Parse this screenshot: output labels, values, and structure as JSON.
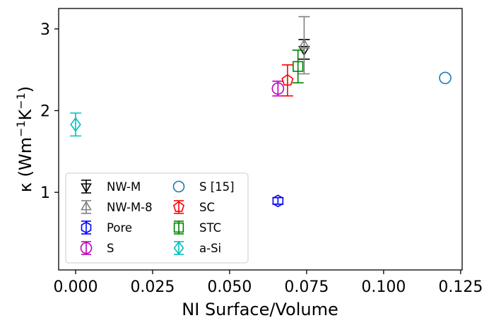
{
  "chart_data": {
    "type": "scatter",
    "title": "",
    "xlabel": "NI Surface/Volume",
    "ylabel_prefix": "κ (Wm",
    "ylabel_sup1": "−1",
    "ylabel_mid": "K",
    "ylabel_sup2": "−1",
    "ylabel_suffix": ")",
    "xlim": [
      -0.0055,
      0.1255
    ],
    "ylim": [
      0.05,
      3.25
    ],
    "xticks": [
      0.0,
      0.025,
      0.05,
      0.075,
      0.1,
      0.125
    ],
    "xtick_labels": [
      "0.000",
      "0.025",
      "0.050",
      "0.075",
      "0.100",
      "0.125"
    ],
    "yticks": [
      1,
      2,
      3
    ],
    "ytick_labels": [
      "1",
      "2",
      "3"
    ],
    "grid": false,
    "legend_position": "lower-left",
    "legend_columns": 2,
    "series": [
      {
        "name": "NW-M",
        "marker": "triangle-down",
        "color": "#000000",
        "points": [
          {
            "x": 0.0742,
            "y": 2.75,
            "err": 0.12
          }
        ]
      },
      {
        "name": "NW-M-8",
        "marker": "triangle-up",
        "color": "#808080",
        "points": [
          {
            "x": 0.0742,
            "y": 2.8,
            "err": 0.35
          }
        ]
      },
      {
        "name": "Pore",
        "marker": "hexagon",
        "color": "#0000ff",
        "points": [
          {
            "x": 0.0657,
            "y": 0.895,
            "err": 0.04
          }
        ]
      },
      {
        "name": "S",
        "marker": "circle",
        "color": "#bf00bf",
        "points": [
          {
            "x": 0.0657,
            "y": 2.27,
            "err": 0.09
          }
        ]
      },
      {
        "name": "S [15]",
        "marker": "circle-open",
        "color": "#1f77b4",
        "points": [
          {
            "x": 0.12,
            "y": 2.4,
            "err": 0
          }
        ]
      },
      {
        "name": "SC",
        "marker": "pentagon",
        "color": "#ff0000",
        "points": [
          {
            "x": 0.0688,
            "y": 2.37,
            "err": 0.19
          }
        ]
      },
      {
        "name": "STC",
        "marker": "square",
        "color": "#008000",
        "points": [
          {
            "x": 0.0722,
            "y": 2.54,
            "err": 0.2
          }
        ]
      },
      {
        "name": "a-Si",
        "marker": "diamond",
        "color": "#00bfbf",
        "points": [
          {
            "x": 0.0,
            "y": 1.83,
            "err": 0.14
          }
        ]
      }
    ]
  }
}
